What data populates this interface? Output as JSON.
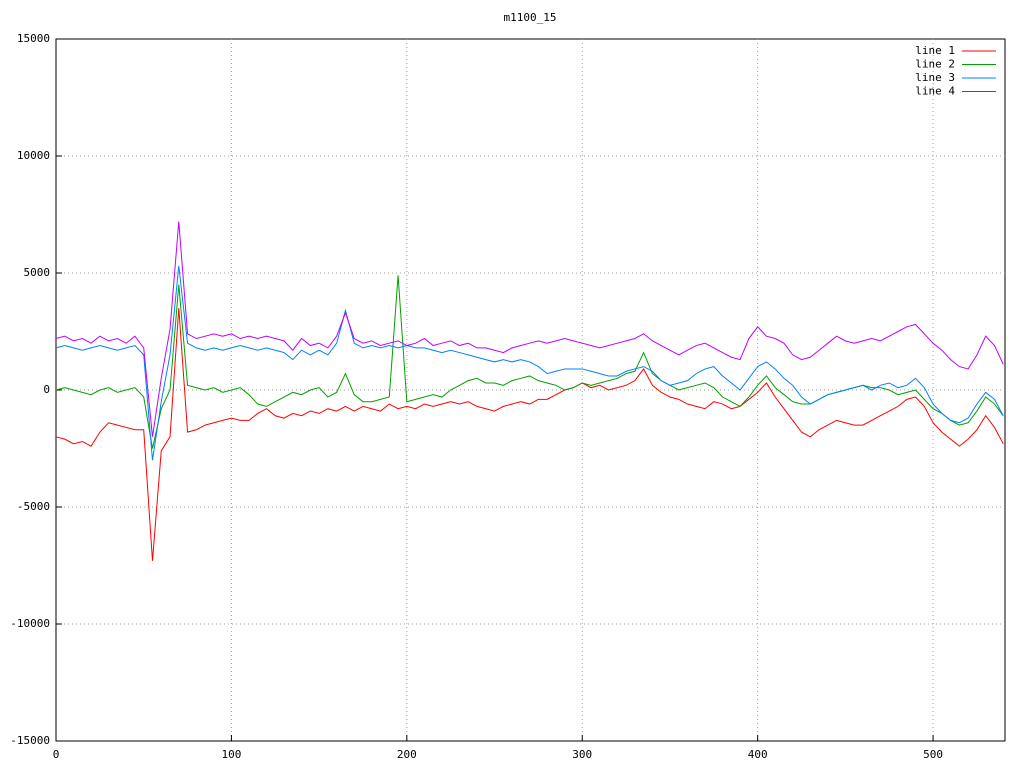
{
  "chart_data": {
    "type": "line",
    "title": "m1100_15",
    "x": [
      0,
      5,
      10,
      15,
      20,
      25,
      30,
      35,
      40,
      45,
      50,
      55,
      60,
      65,
      70,
      75,
      80,
      85,
      90,
      95,
      100,
      105,
      110,
      115,
      120,
      125,
      130,
      135,
      140,
      145,
      150,
      155,
      160,
      165,
      170,
      175,
      180,
      185,
      190,
      195,
      200,
      205,
      210,
      215,
      220,
      225,
      230,
      235,
      240,
      245,
      250,
      255,
      260,
      265,
      270,
      275,
      280,
      285,
      290,
      295,
      300,
      305,
      310,
      315,
      320,
      325,
      330,
      335,
      340,
      345,
      350,
      355,
      360,
      365,
      370,
      375,
      380,
      385,
      390,
      395,
      400,
      405,
      410,
      415,
      420,
      425,
      430,
      435,
      440,
      445,
      450,
      455,
      460,
      465,
      470,
      475,
      480,
      485,
      490,
      495,
      500,
      505,
      510,
      515,
      520,
      525,
      530,
      535,
      540
    ],
    "series": [
      {
        "name": "line 1",
        "color": "#ff0000",
        "values": [
          -2000,
          -2100,
          -2300,
          -2200,
          -2400,
          -1800,
          -1400,
          -1500,
          -1600,
          -1700,
          -1700,
          -7300,
          -2600,
          -2000,
          3500,
          -1800,
          -1700,
          -1500,
          -1400,
          -1300,
          -1200,
          -1300,
          -1300,
          -1000,
          -800,
          -1100,
          -1200,
          -1000,
          -1100,
          -900,
          -1000,
          -800,
          -900,
          -700,
          -900,
          -700,
          -800,
          -900,
          -600,
          -800,
          -700,
          -800,
          -600,
          -700,
          -600,
          -500,
          -600,
          -500,
          -700,
          -800,
          -900,
          -700,
          -600,
          -500,
          -600,
          -400,
          -400,
          -200,
          0,
          100,
          300,
          100,
          200,
          0,
          100,
          200,
          400,
          900,
          200,
          -100,
          -300,
          -400,
          -600,
          -700,
          -800,
          -500,
          -600,
          -800,
          -700,
          -400,
          -100,
          300,
          -300,
          -800,
          -1300,
          -1800,
          -2000,
          -1700,
          -1500,
          -1300,
          -1400,
          -1500,
          -1500,
          -1300,
          -1100,
          -900,
          -700,
          -400,
          -300,
          -700,
          -1400,
          -1800,
          -2100,
          -2400,
          -2100,
          -1700,
          -1100,
          -1600,
          -2300
        ]
      },
      {
        "name": "line 2",
        "color": "#00a000",
        "values": [
          0,
          100,
          0,
          -100,
          -200,
          0,
          100,
          -100,
          0,
          100,
          -300,
          -2500,
          -800,
          0,
          4500,
          200,
          100,
          0,
          100,
          -100,
          0,
          100,
          -200,
          -600,
          -700,
          -500,
          -300,
          -100,
          -200,
          0,
          100,
          -300,
          -100,
          700,
          -200,
          -500,
          -500,
          -400,
          -300,
          4900,
          -500,
          -400,
          -300,
          -200,
          -300,
          0,
          200,
          400,
          500,
          300,
          300,
          200,
          400,
          500,
          600,
          400,
          300,
          200,
          0,
          100,
          300,
          200,
          300,
          400,
          500,
          700,
          800,
          1600,
          700,
          400,
          200,
          0,
          100,
          200,
          300,
          100,
          -300,
          -500,
          -700,
          -300,
          200,
          600,
          100,
          -200,
          -500,
          -600,
          -600,
          -400,
          -200,
          -100,
          0,
          100,
          200,
          100,
          100,
          0,
          -200,
          -100,
          0,
          -400,
          -800,
          -1000,
          -1300,
          -1500,
          -1400,
          -900,
          -300,
          -600,
          -1100
        ]
      },
      {
        "name": "line 3",
        "color": "#0080ff",
        "values": [
          1800,
          1900,
          1800,
          1700,
          1800,
          1900,
          1800,
          1700,
          1800,
          1900,
          1500,
          -3000,
          -500,
          1500,
          5300,
          2000,
          1800,
          1700,
          1800,
          1700,
          1800,
          1900,
          1800,
          1700,
          1800,
          1700,
          1600,
          1300,
          1700,
          1500,
          1700,
          1500,
          2000,
          3400,
          2000,
          1800,
          1900,
          1800,
          1900,
          1800,
          1900,
          1800,
          1800,
          1700,
          1600,
          1700,
          1600,
          1500,
          1400,
          1300,
          1200,
          1300,
          1200,
          1300,
          1200,
          1000,
          700,
          800,
          900,
          900,
          900,
          800,
          700,
          600,
          600,
          800,
          900,
          1000,
          800,
          400,
          200,
          300,
          400,
          700,
          900,
          1000,
          600,
          300,
          0,
          500,
          1000,
          1200,
          900,
          500,
          200,
          -300,
          -600,
          -400,
          -200,
          -100,
          0,
          100,
          200,
          0,
          200,
          300,
          100,
          200,
          500,
          100,
          -600,
          -1000,
          -1300,
          -1400,
          -1200,
          -600,
          -100,
          -400,
          -1100
        ]
      },
      {
        "name": "line 4",
        "color": "#c000ff",
        "values": [
          2200,
          2300,
          2100,
          2200,
          2000,
          2300,
          2100,
          2200,
          2000,
          2300,
          1800,
          -2000,
          500,
          2600,
          7200,
          2400,
          2200,
          2300,
          2400,
          2300,
          2400,
          2200,
          2300,
          2200,
          2300,
          2200,
          2100,
          1700,
          2200,
          1900,
          2000,
          1800,
          2300,
          3300,
          2200,
          2000,
          2100,
          1900,
          2000,
          2100,
          1900,
          2000,
          2200,
          1900,
          2000,
          2100,
          1900,
          2000,
          1800,
          1800,
          1700,
          1600,
          1800,
          1900,
          2000,
          2100,
          2000,
          2100,
          2200,
          2100,
          2000,
          1900,
          1800,
          1900,
          2000,
          2100,
          2200,
          2400,
          2100,
          1900,
          1700,
          1500,
          1700,
          1900,
          2000,
          1800,
          1600,
          1400,
          1300,
          2200,
          2700,
          2300,
          2200,
          2000,
          1500,
          1300,
          1400,
          1700,
          2000,
          2300,
          2100,
          2000,
          2100,
          2200,
          2100,
          2300,
          2500,
          2700,
          2800,
          2400,
          2000,
          1700,
          1300,
          1000,
          900,
          1500,
          2300,
          1900,
          1100
        ]
      }
    ],
    "xlim": [
      0,
      541
    ],
    "ylim": [
      -15000,
      15000
    ],
    "xticks": [
      0,
      100,
      200,
      300,
      400,
      500
    ],
    "yticks": [
      -15000,
      -10000,
      -5000,
      0,
      5000,
      10000,
      15000
    ],
    "grid": true,
    "legend": "top-right"
  }
}
